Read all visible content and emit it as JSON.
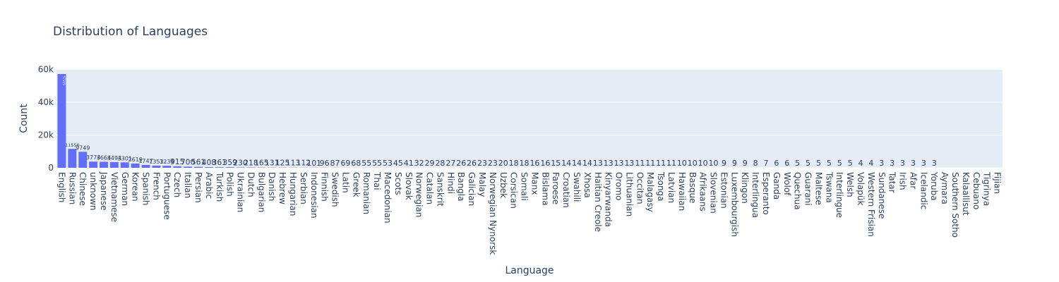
{
  "chart_data": {
    "type": "bar",
    "title": "Distribution of Languages",
    "x_label": "Language",
    "y_label": "Count",
    "categories": [
      "English",
      "Russian",
      "Chinese",
      "unknown",
      "Japanese",
      "Vietnamese",
      "German",
      "Korean",
      "Spanish",
      "French",
      "Portuguese",
      "Czech",
      "Italian",
      "Persian",
      "Arabic",
      "Turkish",
      "Polish",
      "Ukrainian",
      "Dutch",
      "Bulgarian",
      "Danish",
      "Hebrew",
      "Hungarian",
      "Serbian",
      "Indonesian",
      "Finnish",
      "Swedish",
      "Latin",
      "Greek",
      "Romanian",
      "Thai",
      "Macedonian",
      "Scots",
      "Slovak",
      "Norwegian",
      "Catalan",
      "Sanskrit",
      "Hindi",
      "Bangla",
      "Galician",
      "Malay",
      "Norwegian Nynorsk",
      "Uzbek",
      "Corsican",
      "Somali",
      "Manx",
      "Bislama",
      "Faroese",
      "Croatian",
      "Swahili",
      "Xhosa",
      "Haitian Creole",
      "Kinyarwanda",
      "Oromo",
      "Lithuanian",
      "Occitan",
      "Malagasy",
      "Tsonga",
      "Latvian",
      "Hawaiian",
      "Basque",
      "Afrikaans",
      "Slovenian",
      "Estonian",
      "Luxembourgish",
      "Klingon",
      "Interlingua",
      "Esperanto",
      "Ganda",
      "Wolof",
      "Quechua",
      "Guarani",
      "Maltese",
      "Tswana",
      "Interlingue",
      "Welsh",
      "Volapük",
      "Western Frisian",
      "Sundanese",
      "Tatar",
      "Irish",
      "Afar",
      "Icelandic",
      "Yoruba",
      "Aymara",
      "Southern Sotho",
      "Kalaallisut",
      "Cebuano",
      "Tigrinya",
      "Fijian"
    ],
    "values": [
      57215,
      11556,
      9749,
      3774,
      3664,
      3494,
      3301,
      2619,
      1747,
      1353,
      1234,
      915,
      700,
      561,
      408,
      361,
      359,
      230,
      218,
      165,
      131,
      125,
      113,
      112,
      101,
      96,
      87,
      69,
      68,
      55,
      55,
      53,
      45,
      41,
      32,
      29,
      28,
      27,
      26,
      26,
      23,
      23,
      20,
      18,
      18,
      16,
      16,
      15,
      14,
      14,
      14,
      13,
      13,
      13,
      13,
      11,
      11,
      11,
      11,
      10,
      10,
      10,
      10,
      9,
      9,
      9,
      8,
      7,
      6,
      6,
      5,
      5,
      5,
      5,
      5,
      5,
      4,
      4,
      3,
      3,
      3,
      3,
      3,
      3,
      2,
      2,
      1,
      1,
      1,
      1
    ],
    "value_labels": [
      "57215",
      "11556",
      "9749",
      "3774",
      "3664",
      "3494",
      "3301",
      "2619",
      "1747",
      "1353",
      "1234",
      "915",
      "700",
      "561",
      "408",
      "361",
      "359",
      "230",
      "218",
      "165",
      "131",
      "125",
      "113",
      "112",
      "101",
      "96",
      "87",
      "69",
      "68",
      "55",
      "55",
      "53",
      "45",
      "41",
      "32",
      "29",
      "28",
      "27",
      "26",
      "26",
      "23",
      "23",
      "20",
      "18",
      "18",
      "16",
      "16",
      "15",
      "14",
      "14",
      "14",
      "13",
      "13",
      "13",
      "13",
      "11",
      "11",
      "11",
      "11",
      "10",
      "10",
      "10",
      "10",
      "9",
      "9",
      "9",
      "8",
      "7",
      "6",
      "6",
      "5",
      "5",
      "5",
      "5",
      "5",
      "5",
      "4",
      "4",
      "3",
      "3",
      "3",
      "3",
      "3",
      "3",
      null,
      null,
      null,
      null,
      null,
      null
    ],
    "color": "#636efa",
    "ylim": [
      0,
      60227
    ],
    "yticks": [
      0,
      {
        "value": 20000,
        "label": "20k"
      },
      {
        "value": 40000,
        "label": "40k"
      },
      {
        "value": 60000,
        "label": "60k"
      }
    ],
    "grid": true
  }
}
